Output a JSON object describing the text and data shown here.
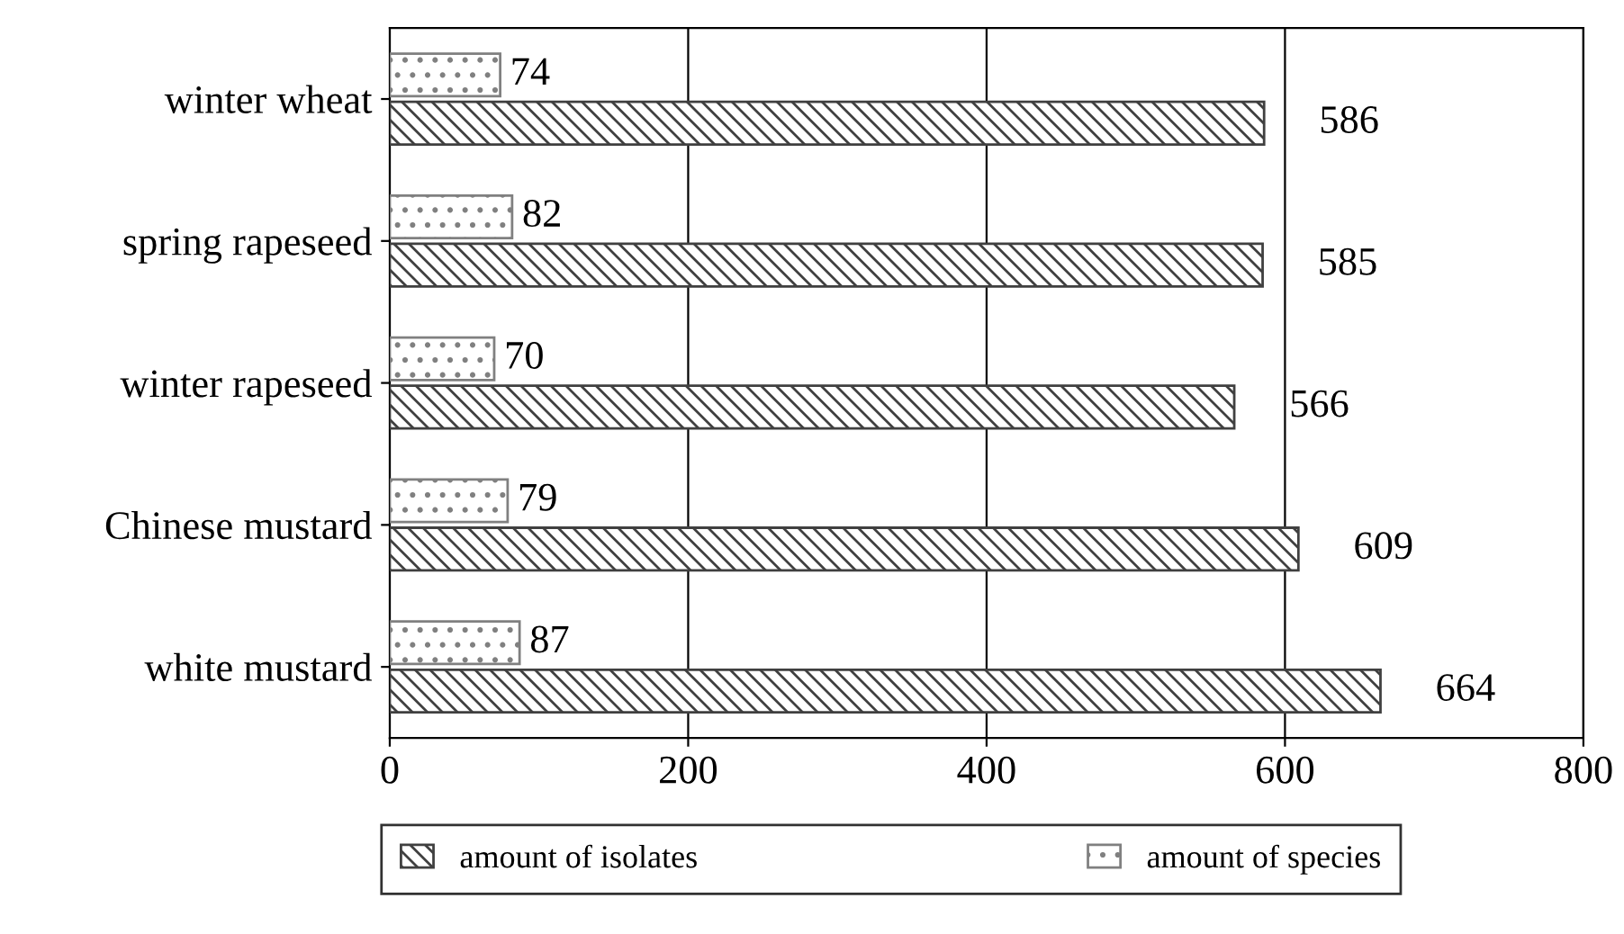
{
  "chart_data": {
    "type": "bar",
    "orientation": "horizontal",
    "categories": [
      "winter wheat",
      "spring rapeseed",
      "winter rapeseed",
      "Chinese mustard",
      "white mustard"
    ],
    "series": [
      {
        "name": "amount of isolates",
        "color": "#404040",
        "values": [
          586,
          585,
          566,
          609,
          664
        ]
      },
      {
        "name": "amount of species",
        "color": "#808080",
        "values": [
          74,
          82,
          70,
          79,
          87
        ]
      }
    ],
    "xlim": [
      0,
      800
    ],
    "xticks": [
      0,
      200,
      400,
      600,
      800
    ],
    "grid": "x",
    "legend": "bottom",
    "data_labels": true
  }
}
